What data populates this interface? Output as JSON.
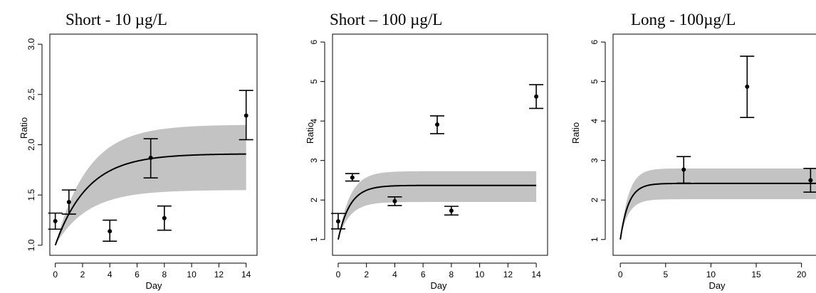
{
  "colors": {
    "band": "#c3c3c3",
    "line": "#000000",
    "point": "#000000"
  },
  "chart_data": [
    {
      "type": "line",
      "title": "Short - 10 µg/L",
      "xlabel": "Day",
      "ylabel": "Ratio",
      "xlim": [
        -0.4,
        14.8
      ],
      "ylim": [
        0.9,
        3.1
      ],
      "xticks": [
        0,
        2,
        4,
        6,
        8,
        10,
        12,
        14
      ],
      "yticks": [
        1.0,
        1.5,
        2.0,
        2.5,
        3.0
      ],
      "ytick_labels": [
        "1.0",
        "1.5",
        "2.0",
        "2.5",
        "3.0"
      ],
      "model": {
        "form": "exponential-saturation",
        "x_start": 0,
        "x_end": 14,
        "start": 1.0,
        "plateau": 1.91,
        "rate": 0.42,
        "band_lower_plateau": 1.55,
        "band_upper_plateau": 2.2
      },
      "points": [
        {
          "x": 0.0,
          "y": 1.24,
          "lo": 1.16,
          "hi": 1.32
        },
        {
          "x": 1.0,
          "y": 1.43,
          "lo": 1.31,
          "hi": 1.55
        },
        {
          "x": 4.0,
          "y": 1.14,
          "lo": 1.04,
          "hi": 1.25
        },
        {
          "x": 7.0,
          "y": 1.87,
          "lo": 1.67,
          "hi": 2.06
        },
        {
          "x": 8.0,
          "y": 1.27,
          "lo": 1.15,
          "hi": 1.39
        },
        {
          "x": 14.0,
          "y": 2.29,
          "lo": 2.05,
          "hi": 2.54
        }
      ]
    },
    {
      "type": "line",
      "title": "Short – 100 µg/L",
      "xlabel": "Day",
      "ylabel": "Ratio",
      "xlim": [
        -0.4,
        14.8
      ],
      "ylim": [
        0.6,
        6.2
      ],
      "xticks": [
        0,
        2,
        4,
        6,
        8,
        10,
        12,
        14
      ],
      "yticks": [
        1,
        2,
        3,
        4,
        5,
        6
      ],
      "ytick_labels": [
        "1",
        "2",
        "3",
        "4",
        "5",
        "6"
      ],
      "model": {
        "form": "exponential-saturation",
        "x_start": 0,
        "x_end": 14,
        "start": 1.0,
        "plateau": 2.37,
        "rate": 1.2,
        "band_lower_plateau": 1.95,
        "band_upper_plateau": 2.73
      },
      "points": [
        {
          "x": 0.0,
          "y": 1.46,
          "lo": 1.27,
          "hi": 1.66
        },
        {
          "x": 1.0,
          "y": 2.57,
          "lo": 2.48,
          "hi": 2.67
        },
        {
          "x": 4.0,
          "y": 1.97,
          "lo": 1.86,
          "hi": 2.08
        },
        {
          "x": 7.0,
          "y": 3.91,
          "lo": 3.68,
          "hi": 4.13
        },
        {
          "x": 8.0,
          "y": 1.73,
          "lo": 1.62,
          "hi": 1.84
        },
        {
          "x": 14.0,
          "y": 4.62,
          "lo": 4.32,
          "hi": 4.92
        }
      ]
    },
    {
      "type": "line",
      "title": "Long - 100µg/L",
      "xlabel": "Day",
      "ylabel": "Ratio",
      "xlim": [
        -0.8,
        21.6
      ],
      "ylim": [
        0.6,
        6.2
      ],
      "xticks": [
        0,
        5,
        10,
        15,
        20
      ],
      "yticks": [
        1,
        2,
        3,
        4,
        5,
        6
      ],
      "ytick_labels": [
        "1",
        "2",
        "3",
        "4",
        "5",
        "6"
      ],
      "model": {
        "form": "exponential-saturation",
        "x_start": 0,
        "x_end": 21.6,
        "start": 1.0,
        "plateau": 2.42,
        "rate": 1.1,
        "band_lower_plateau": 2.02,
        "band_upper_plateau": 2.8
      },
      "points": [
        {
          "x": 7.0,
          "y": 2.77,
          "lo": 2.43,
          "hi": 3.1
        },
        {
          "x": 14.0,
          "y": 4.87,
          "lo": 4.09,
          "hi": 5.64
        },
        {
          "x": 21.0,
          "y": 2.5,
          "lo": 2.2,
          "hi": 2.8
        }
      ]
    }
  ]
}
